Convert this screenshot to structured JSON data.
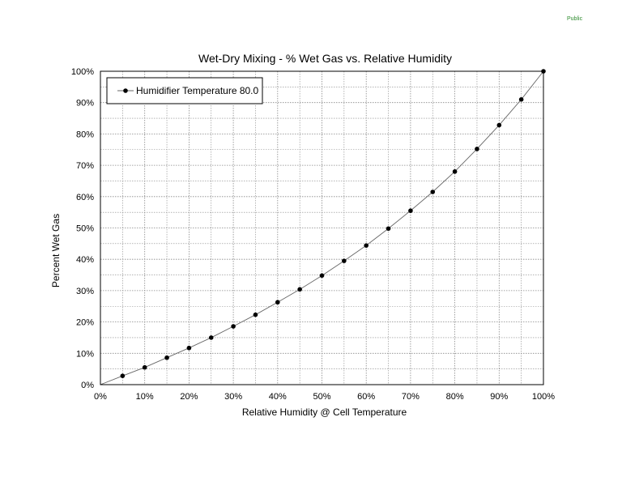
{
  "page": {
    "classification_label": "Public"
  },
  "colors": {
    "background": "#ffffff",
    "gridline": "#888888",
    "series_line": "#666666",
    "series_marker": "#000000",
    "classification_text": "#2e8b2e"
  },
  "chart_data": {
    "type": "line",
    "title": "Wet-Dry Mixing - % Wet Gas vs. Relative Humidity",
    "xlabel": "Relative Humidity @ Cell Temperature",
    "ylabel": "Percent Wet Gas",
    "xlim": [
      0,
      100
    ],
    "ylim": [
      0,
      100
    ],
    "x_unit": "%",
    "y_unit": "%",
    "x_ticks": [
      "0%",
      "10%",
      "20%",
      "30%",
      "40%",
      "50%",
      "60%",
      "70%",
      "80%",
      "90%",
      "100%"
    ],
    "y_ticks": [
      "0%",
      "10%",
      "20%",
      "30%",
      "40%",
      "50%",
      "60%",
      "70%",
      "80%",
      "90%",
      "100%"
    ],
    "grid": true,
    "grid_style": "dotted",
    "legend_position": "top-left",
    "series": [
      {
        "name": "Humidifier Temperature 80.0",
        "marker": "circle",
        "x": [
          5,
          10,
          15,
          20,
          25,
          30,
          35,
          40,
          45,
          50,
          55,
          60,
          65,
          70,
          75,
          80,
          85,
          90,
          95,
          100
        ],
        "y": [
          2.8,
          5.5,
          8.6,
          11.7,
          15.0,
          18.6,
          22.3,
          26.3,
          30.4,
          34.8,
          39.5,
          44.4,
          49.8,
          55.5,
          61.5,
          68.0,
          75.2,
          82.8,
          91.0,
          100.0
        ]
      }
    ]
  }
}
